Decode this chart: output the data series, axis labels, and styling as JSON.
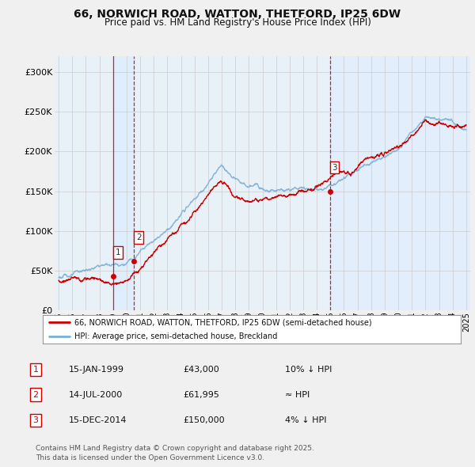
{
  "title": "66, NORWICH ROAD, WATTON, THETFORD, IP25 6DW",
  "subtitle": "Price paid vs. HM Land Registry's House Price Index (HPI)",
  "ylim": [
    0,
    320000
  ],
  "yticks": [
    0,
    50000,
    100000,
    150000,
    200000,
    250000,
    300000
  ],
  "ytick_labels": [
    "£0",
    "£50K",
    "£100K",
    "£150K",
    "£200K",
    "£250K",
    "£300K"
  ],
  "x_start_year": 1995,
  "x_end_year": 2025,
  "sale_years": [
    1999.04,
    2000.54,
    2014.96
  ],
  "sale_prices": [
    43000,
    61995,
    150000
  ],
  "sale_labels": [
    "1",
    "2",
    "3"
  ],
  "hpi_color": "#7bafd4",
  "price_color": "#cc0000",
  "vline_color": "#cc0000",
  "shade_color": "#ddeeff",
  "legend_label_price": "66, NORWICH ROAD, WATTON, THETFORD, IP25 6DW (semi-detached house)",
  "legend_label_hpi": "HPI: Average price, semi-detached house, Breckland",
  "table_rows": [
    {
      "num": "1",
      "date": "15-JAN-1999",
      "price": "£43,000",
      "note": "10% ↓ HPI"
    },
    {
      "num": "2",
      "date": "14-JUL-2000",
      "price": "£61,995",
      "note": "≈ HPI"
    },
    {
      "num": "3",
      "date": "15-DEC-2014",
      "price": "£150,000",
      "note": "4% ↓ HPI"
    }
  ],
  "footnote": "Contains HM Land Registry data © Crown copyright and database right 2025.\nThis data is licensed under the Open Government Licence v3.0.",
  "background_color": "#f0f0f0",
  "plot_bg_color": "#e8f0f8"
}
